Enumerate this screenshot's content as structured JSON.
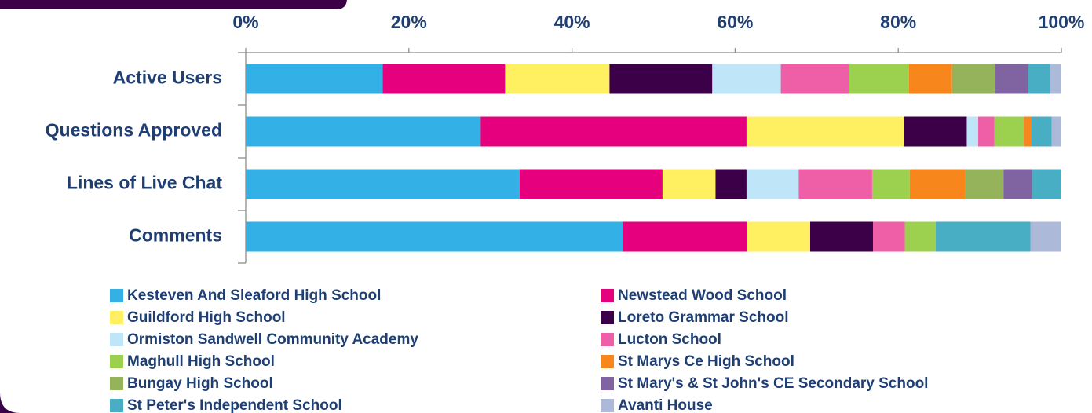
{
  "chart_data": {
    "type": "stacked_barh",
    "categories": [
      "Active Users",
      "Questions Approved",
      "Lines of Live Chat",
      "Comments"
    ],
    "series": [
      {
        "name": "Kesteven And Sleaford High School",
        "color": "#33b0e5",
        "values": [
          16.8,
          28.8,
          33.6,
          46.2
        ]
      },
      {
        "name": "Newstead Wood School",
        "color": "#e6007e",
        "values": [
          15.0,
          32.6,
          17.5,
          15.3
        ]
      },
      {
        "name": "Guildford High School",
        "color": "#fff061",
        "values": [
          12.8,
          19.3,
          6.5,
          7.7
        ]
      },
      {
        "name": "Loreto Grammar School",
        "color": "#3b0048",
        "values": [
          12.6,
          7.7,
          3.8,
          7.7
        ]
      },
      {
        "name": "Ormiston Sandwell Community Academy",
        "color": "#bfe6f8",
        "values": [
          8.4,
          1.4,
          6.4,
          0
        ]
      },
      {
        "name": "Lucton School",
        "color": "#ef5fa7",
        "values": [
          8.4,
          2.0,
          9.0,
          3.9
        ]
      },
      {
        "name": "Maghull High School",
        "color": "#9cd14f",
        "values": [
          7.3,
          3.6,
          4.6,
          3.8
        ]
      },
      {
        "name": "St Marys Ce High School",
        "color": "#f7861c",
        "values": [
          5.3,
          0.9,
          6.8,
          0
        ]
      },
      {
        "name": "Bungay High School",
        "color": "#94b35a",
        "values": [
          5.3,
          0,
          4.7,
          0
        ]
      },
      {
        "name": "St Mary's & St John's CE Secondary School",
        "color": "#8064a2",
        "values": [
          4.0,
          0,
          3.5,
          0
        ]
      },
      {
        "name": "St Peter's Independent School",
        "color": "#48aec4",
        "values": [
          2.7,
          2.5,
          3.6,
          11.6
        ]
      },
      {
        "name": "Avanti House",
        "color": "#acb9d9",
        "values": [
          1.4,
          1.2,
          0,
          3.8
        ]
      }
    ],
    "xlim": [
      0,
      100
    ],
    "xticks": [
      {
        "value": 0,
        "label": "0%"
      },
      {
        "value": 20,
        "label": "20%"
      },
      {
        "value": 40,
        "label": "40%"
      },
      {
        "value": 60,
        "label": "60%"
      },
      {
        "value": 80,
        "label": "80%"
      },
      {
        "value": 100,
        "label": "100%"
      }
    ],
    "legend": "bottom"
  }
}
